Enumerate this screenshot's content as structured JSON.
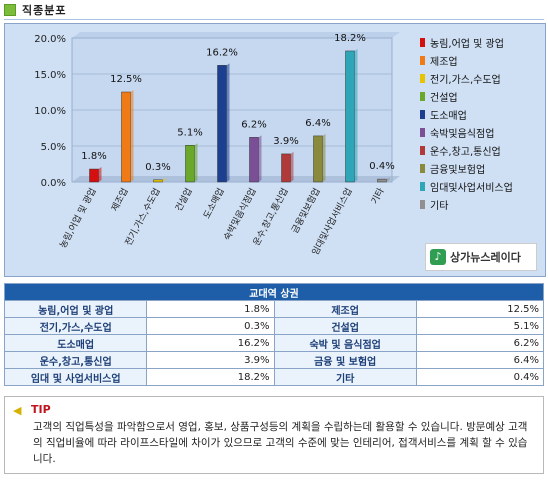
{
  "section_title": "직종분포",
  "chart_data": {
    "type": "bar",
    "categories": [
      "농림,어업 및 광업",
      "제조업",
      "전기,가스,수도업",
      "건설업",
      "도소매업",
      "숙박및음식점업",
      "운수,창고,통신업",
      "금융및보험업",
      "임대및사업서비스업",
      "기타"
    ],
    "values": [
      1.8,
      12.5,
      0.3,
      5.1,
      16.2,
      6.2,
      3.9,
      6.4,
      18.2,
      0.4
    ],
    "value_labels": [
      "1.8%",
      "12.5%",
      "0.3%",
      "5.1%",
      "16.2%",
      "6.2%",
      "3.9%",
      "6.4%",
      "18.2%",
      "0.4%"
    ],
    "legend": [
      "농림,어업 및 광업",
      "제조업",
      "전기,가스,수도업",
      "건설업",
      "도소매업",
      "숙박및음식점업",
      "운수,창고,통신업",
      "금융및보험업",
      "임대및사업서비스업",
      "기타"
    ],
    "colors": [
      "#d40f0f",
      "#f07a16",
      "#e8c400",
      "#6aa82b",
      "#1d3f8f",
      "#7a4f96",
      "#b03a3a",
      "#8a8a3c",
      "#2fa6b8",
      "#909090"
    ],
    "yticks": [
      "0.0%",
      "5.0%",
      "10.0%",
      "15.0%",
      "20.0%"
    ],
    "ylim": [
      0,
      20
    ],
    "grid": true,
    "legend_position": "right"
  },
  "logo_text": "상가뉴스레이다",
  "table": {
    "header": "교대역 상권",
    "rows": [
      [
        {
          "k": "농림,어업 및 광업",
          "v": "1.8%"
        },
        {
          "k": "제조업",
          "v": "12.5%"
        }
      ],
      [
        {
          "k": "전기,가스,수도업",
          "v": "0.3%"
        },
        {
          "k": "건설업",
          "v": "5.1%"
        }
      ],
      [
        {
          "k": "도소매업",
          "v": "16.2%"
        },
        {
          "k": "숙박 및 음식점업",
          "v": "6.2%"
        }
      ],
      [
        {
          "k": "운수,창고,통신업",
          "v": "3.9%"
        },
        {
          "k": "금융 및 보험업",
          "v": "6.4%"
        }
      ],
      [
        {
          "k": "임대 및 사업서비스업",
          "v": "18.2%"
        },
        {
          "k": "기타",
          "v": "0.4%"
        }
      ]
    ]
  },
  "tip": {
    "label": "TIP",
    "text": "고객의 직업특성을 파악함으로서 영업, 홍보, 상품구성등의 계획을 수립하는데 활용할 수 있습니다. 방문예상 고객의 직업비율에 따라 라이프스타일에 차이가 있으므로 고객의 수준에 맞는 인테리어, 접객서비스를 계획 할 수 있습니다."
  }
}
